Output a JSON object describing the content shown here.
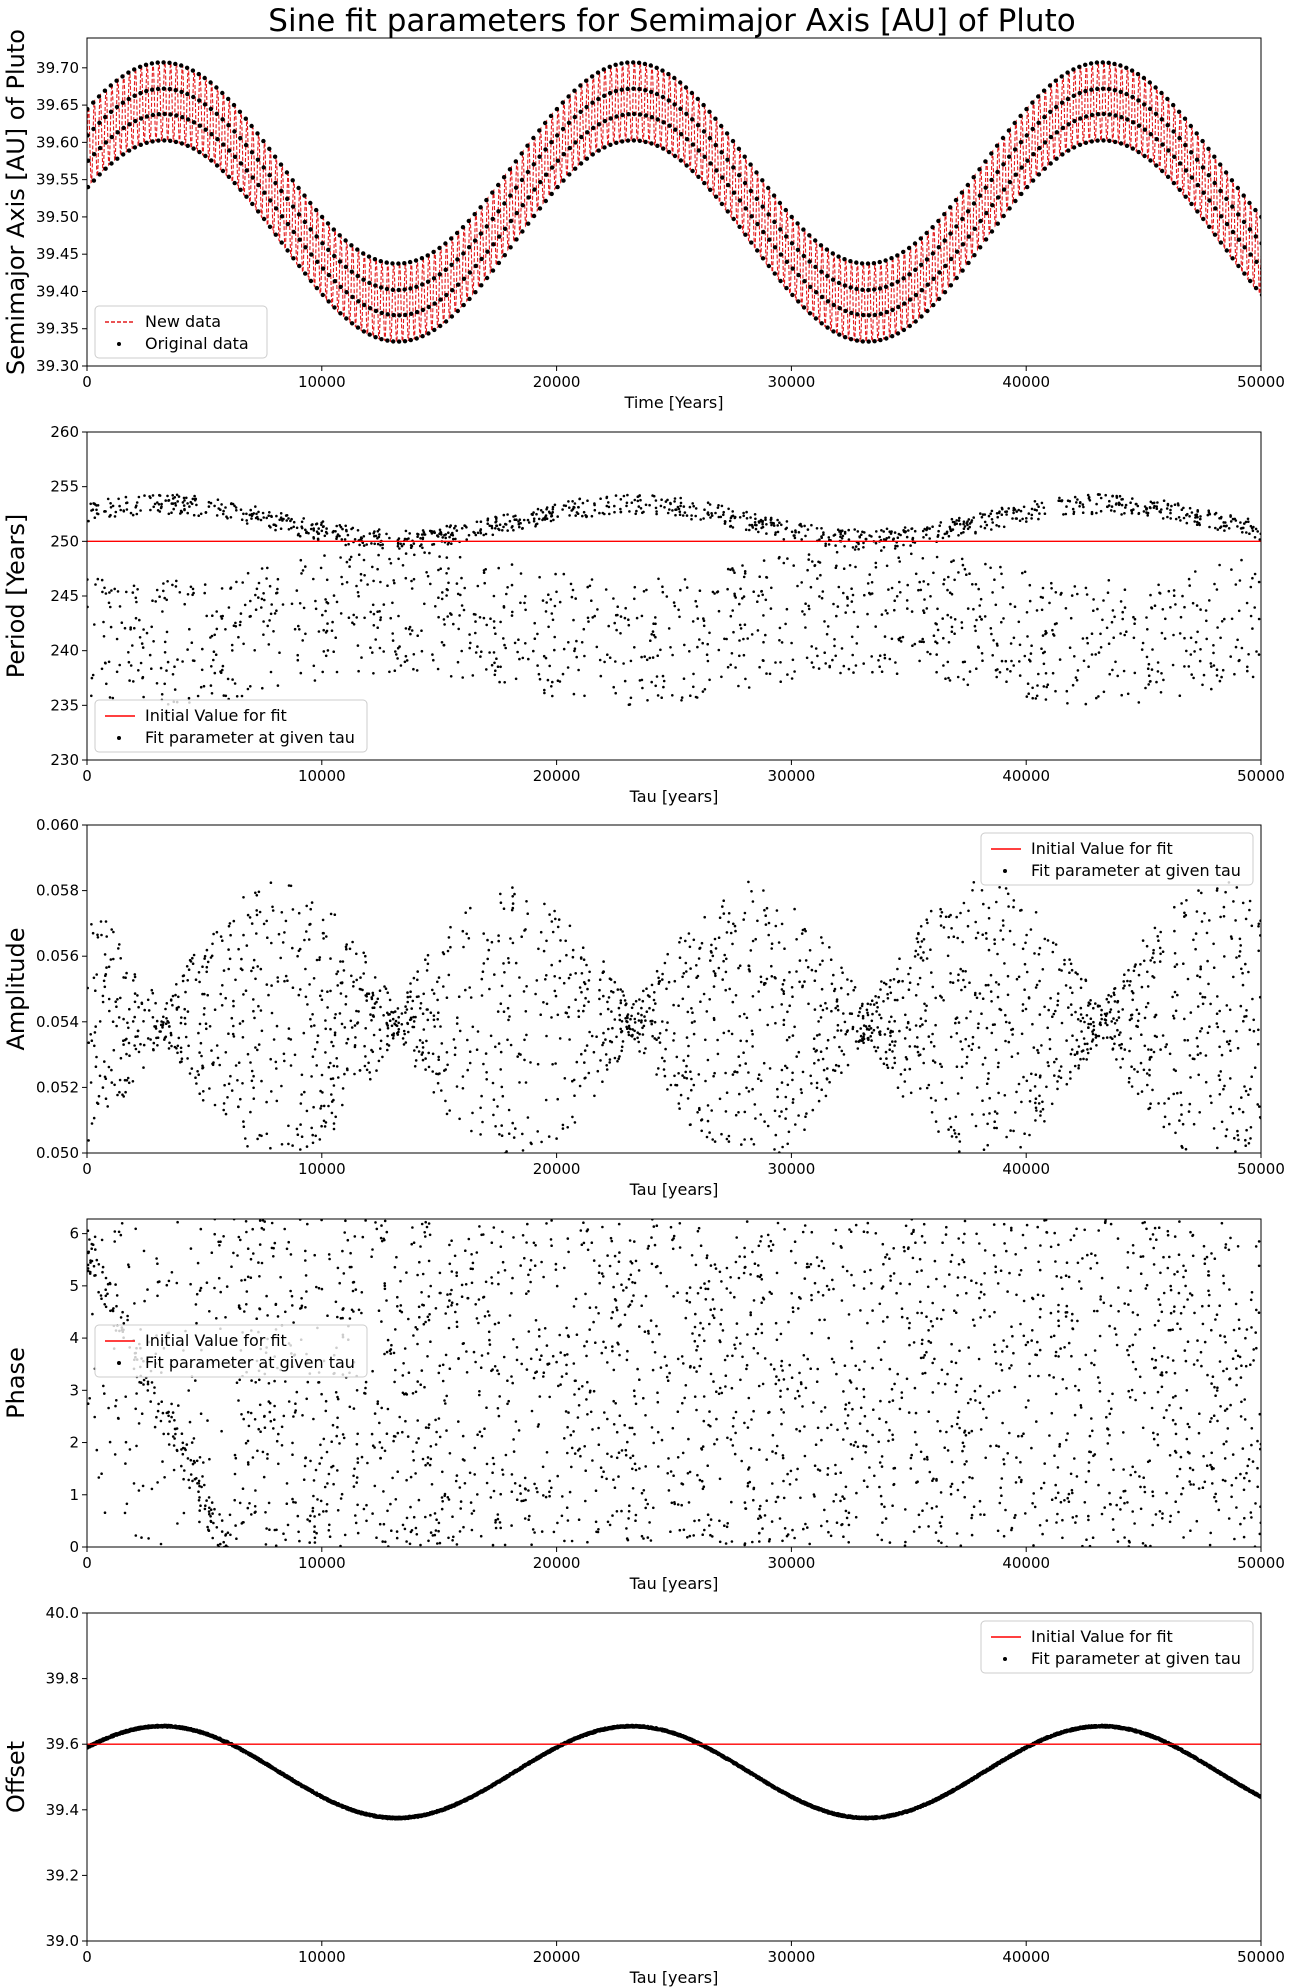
{
  "title": "Sine fit parameters for Semimajor Axis [AU] of Pluto",
  "chart_data": [
    {
      "type": "scatter",
      "title": "Sine fit parameters for Semimajor Axis [AU] of Pluto",
      "xlabel": "Time [Years]",
      "ylabel": "Semimajor Axis [AU] of Pluto",
      "xlim": [
        0,
        50000
      ],
      "ylim": [
        39.3,
        39.74
      ],
      "xticks": [
        0,
        10000,
        20000,
        30000,
        40000,
        50000
      ],
      "yticks": [
        39.3,
        39.35,
        39.4,
        39.45,
        39.5,
        39.55,
        39.6,
        39.65,
        39.7
      ],
      "legend_position": "lower-left",
      "series": [
        {
          "name": "New data",
          "style": "dashed-line",
          "color": "#e41a1c",
          "model": {
            "offset": 39.52,
            "amplitude": 0.135,
            "period_years": 20000,
            "peak_time": 3200,
            "ripple_amplitude": 0.055,
            "ripple_period_years": 250
          }
        },
        {
          "name": "Original data",
          "style": "points",
          "color": "#000000"
        }
      ]
    },
    {
      "type": "scatter",
      "xlabel": "Tau [years]",
      "ylabel": "Period [Years]",
      "xlim": [
        0,
        50000
      ],
      "ylim": [
        230,
        260
      ],
      "xticks": [
        0,
        10000,
        20000,
        30000,
        40000,
        50000
      ],
      "yticks": [
        230,
        235,
        240,
        245,
        250,
        255,
        260
      ],
      "legend_position": "lower-left",
      "initial_value": 250,
      "series": [
        {
          "name": "Initial Value for fit",
          "style": "line",
          "color": "#ff0000"
        },
        {
          "name": "Fit parameter at given tau",
          "style": "points",
          "color": "#000000",
          "range": {
            "upper": [
              249,
              254.5
            ],
            "lower": [
              236,
              247.5
            ]
          }
        }
      ]
    },
    {
      "type": "scatter",
      "xlabel": "Tau [years]",
      "ylabel": "Amplitude",
      "xlim": [
        0,
        50000
      ],
      "ylim": [
        0.05,
        0.06
      ],
      "xticks": [
        0,
        10000,
        20000,
        30000,
        40000,
        50000
      ],
      "yticks": [
        0.05,
        0.052,
        0.054,
        0.056,
        0.058,
        0.06
      ],
      "legend_position": "upper-right",
      "series": [
        {
          "name": "Initial Value for fit",
          "style": "line",
          "color": "#ff0000"
        },
        {
          "name": "Fit parameter at given tau",
          "style": "points",
          "color": "#000000",
          "range": {
            "center": 0.054,
            "min": 0.05,
            "max": 0.0582
          }
        }
      ]
    },
    {
      "type": "scatter",
      "xlabel": "Tau [years]",
      "ylabel": "Phase",
      "xlim": [
        0,
        50000
      ],
      "ylim": [
        0,
        6.28
      ],
      "xticks": [
        0,
        10000,
        20000,
        30000,
        40000,
        50000
      ],
      "yticks": [
        0,
        1,
        2,
        3,
        4,
        5,
        6
      ],
      "legend_position": "center-left",
      "series": [
        {
          "name": "Initial Value for fit",
          "style": "line",
          "color": "#ff0000"
        },
        {
          "name": "Fit parameter at given tau",
          "style": "points",
          "color": "#000000",
          "range": {
            "min": 0,
            "max": 6.28
          }
        }
      ]
    },
    {
      "type": "scatter",
      "xlabel": "Tau [years]",
      "ylabel": "Offset",
      "xlim": [
        0,
        50000
      ],
      "ylim": [
        39.0,
        40.0
      ],
      "xticks": [
        0,
        10000,
        20000,
        30000,
        40000,
        50000
      ],
      "yticks": [
        39.0,
        39.2,
        39.4,
        39.6,
        39.8,
        40.0
      ],
      "legend_position": "upper-right",
      "initial_value": 39.6,
      "series": [
        {
          "name": "Initial Value for fit",
          "style": "line",
          "color": "#ff0000"
        },
        {
          "name": "Fit parameter at given tau",
          "style": "points",
          "color": "#000000",
          "model": {
            "offset": 39.515,
            "amplitude": 0.14,
            "period_years": 20000,
            "peak_time": 3200
          }
        }
      ]
    }
  ]
}
